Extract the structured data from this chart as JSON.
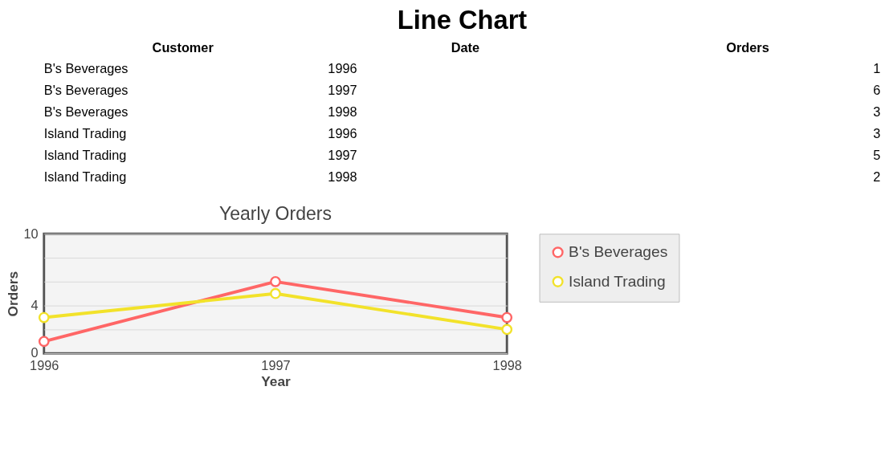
{
  "chart_data": [
    {
      "type": "other",
      "title": "Line Chart",
      "annotations": [
        "Customer",
        "Date",
        "Orders",
        "B's Beverages",
        "1996",
        "1",
        "B's Beverages",
        "1997",
        "6",
        "B's Beverages",
        "1998",
        "3",
        "Island Trading",
        "1996",
        "3",
        "Island Trading",
        "1997",
        "5",
        "Island Trading",
        "1998",
        "2"
      ]
    },
    {
      "type": "line",
      "title": "Yearly Orders",
      "xlabel": "Year",
      "ylabel": "Orders",
      "x": [
        1996,
        1997,
        1998
      ],
      "series": [
        {
          "name": "B's Beverages",
          "color": "#ff6666",
          "values": [
            1,
            6,
            3
          ]
        },
        {
          "name": "Island Trading",
          "color": "#f2e22a",
          "values": [
            3,
            5,
            2
          ]
        }
      ],
      "xlim": [
        1996,
        1998
      ],
      "xticks": [
        1996,
        1997,
        1998
      ],
      "ylim": [
        0,
        10
      ],
      "yticks": [
        0,
        {
          "value": 2,
          "label": null
        },
        4,
        {
          "value": 6,
          "label": null
        },
        {
          "value": 8,
          "label": null
        },
        10
      ],
      "grid": "y",
      "legend": "right",
      "marker": "circle",
      "line_style": "solid"
    }
  ]
}
